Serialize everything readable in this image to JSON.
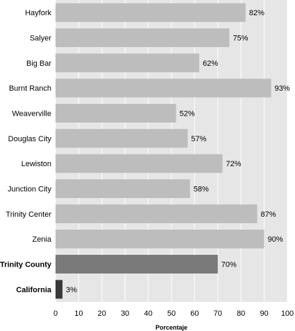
{
  "chart_data": {
    "type": "bar",
    "orientation": "horizontal",
    "categories": [
      "Hayfork",
      "Salyer",
      "Big Bar",
      "Burnt Ranch",
      "Weaverville",
      "Douglas City",
      "Lewiston",
      "Junction City",
      "Trinity Center",
      "Zenia",
      "Trinity County",
      "California"
    ],
    "values": [
      82,
      75,
      62,
      93,
      52,
      57,
      72,
      58,
      87,
      90,
      70,
      3
    ],
    "value_labels": [
      "82%",
      "75%",
      "62%",
      "93%",
      "52%",
      "57%",
      "72%",
      "58%",
      "87%",
      "90%",
      "70%",
      "3%"
    ],
    "emphasized": [
      "Trinity County",
      "California"
    ],
    "colors": {
      "default": "#bdbdbd",
      "Trinity County": "#7a7a7a",
      "California": "#3a3a3a",
      "plot_background": "#e6e6e6",
      "gridline": "#ffffff"
    },
    "xlabel": "Porcentaje",
    "ylabel": "",
    "title": "",
    "xlim": [
      0,
      100
    ],
    "xticks": [
      "0",
      "10",
      "20",
      "30",
      "40",
      "50",
      "60",
      "70",
      "80",
      "90",
      "100"
    ],
    "grid": true,
    "legend": "none"
  }
}
